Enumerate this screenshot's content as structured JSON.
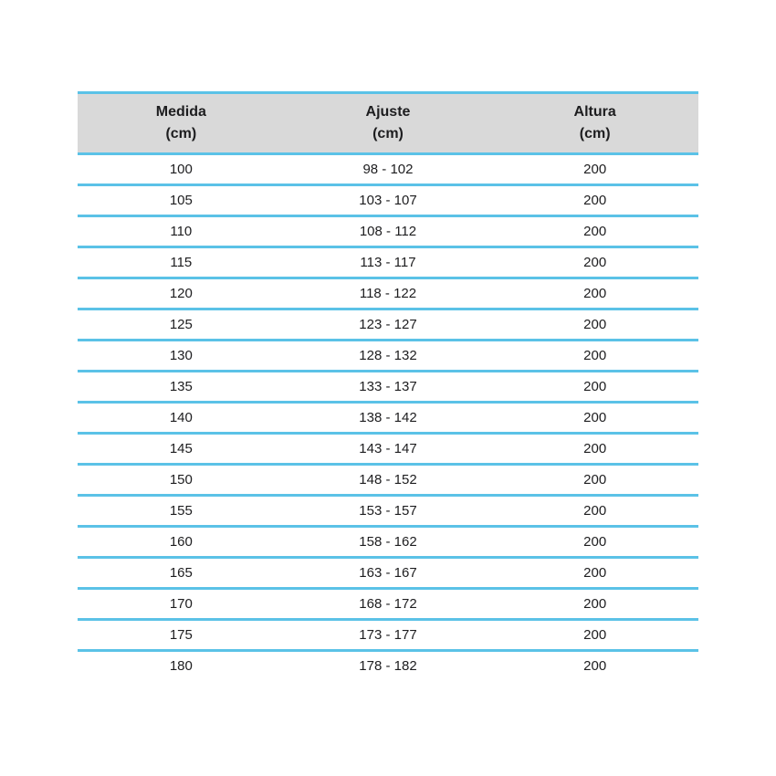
{
  "colors": {
    "accent": "#5bc2e7",
    "header_bg": "#d9d9d9",
    "text": "#1d1d1f",
    "background": "#ffffff"
  },
  "table": {
    "headers": [
      {
        "label": "Medida",
        "unit": "(cm)"
      },
      {
        "label": "Ajuste",
        "unit": "(cm)"
      },
      {
        "label": "Altura",
        "unit": "(cm)"
      }
    ],
    "rows": [
      [
        "100",
        "98 - 102",
        "200"
      ],
      [
        "105",
        "103 - 107",
        "200"
      ],
      [
        "110",
        "108 - 112",
        "200"
      ],
      [
        "115",
        "113 - 117",
        "200"
      ],
      [
        "120",
        "118 - 122",
        "200"
      ],
      [
        "125",
        "123 - 127",
        "200"
      ],
      [
        "130",
        "128 - 132",
        "200"
      ],
      [
        "135",
        "133 - 137",
        "200"
      ],
      [
        "140",
        "138 - 142",
        "200"
      ],
      [
        "145",
        "143 - 147",
        "200"
      ],
      [
        "150",
        "148 - 152",
        "200"
      ],
      [
        "155",
        "153 - 157",
        "200"
      ],
      [
        "160",
        "158 - 162",
        "200"
      ],
      [
        "165",
        "163 - 167",
        "200"
      ],
      [
        "170",
        "168 - 172",
        "200"
      ],
      [
        "175",
        "173 - 177",
        "200"
      ],
      [
        "180",
        "178 - 182",
        "200"
      ]
    ]
  },
  "chart_data": {
    "type": "table",
    "title": "",
    "columns": [
      "Medida (cm)",
      "Ajuste (cm)",
      "Altura (cm)"
    ],
    "rows": [
      [
        "100",
        "98 - 102",
        "200"
      ],
      [
        "105",
        "103 - 107",
        "200"
      ],
      [
        "110",
        "108 - 112",
        "200"
      ],
      [
        "115",
        "113 - 117",
        "200"
      ],
      [
        "120",
        "118 - 122",
        "200"
      ],
      [
        "125",
        "123 - 127",
        "200"
      ],
      [
        "130",
        "128 - 132",
        "200"
      ],
      [
        "135",
        "133 - 137",
        "200"
      ],
      [
        "140",
        "138 - 142",
        "200"
      ],
      [
        "145",
        "143 - 147",
        "200"
      ],
      [
        "150",
        "148 - 152",
        "200"
      ],
      [
        "155",
        "153 - 157",
        "200"
      ],
      [
        "160",
        "158 - 162",
        "200"
      ],
      [
        "165",
        "163 - 167",
        "200"
      ],
      [
        "170",
        "168 - 172",
        "200"
      ],
      [
        "175",
        "173 - 177",
        "200"
      ],
      [
        "180",
        "178 - 182",
        "200"
      ]
    ]
  }
}
